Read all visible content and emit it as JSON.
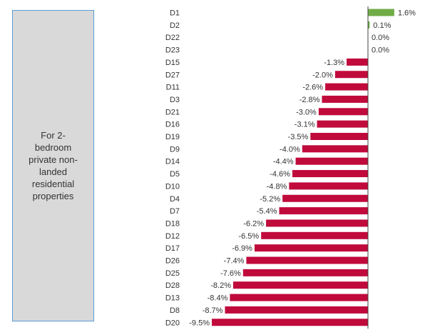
{
  "side_panel": {
    "text": "For 2-\nbedroom\nprivate non-\nlanded\nresidential\nproperties"
  },
  "colors": {
    "positive": "#70ad47",
    "negative": "#c00a3c",
    "panel_fill": "#d9d9d9",
    "panel_border": "#5b9bd5",
    "axis": "#444444",
    "text": "#333333"
  },
  "chart_data": {
    "type": "bar",
    "orientation": "horizontal",
    "title": "",
    "xlabel": "",
    "ylabel": "",
    "value_unit": "%",
    "categories": [
      "D1",
      "D2",
      "D22",
      "D23",
      "D15",
      "D27",
      "D11",
      "D3",
      "D21",
      "D16",
      "D19",
      "D9",
      "D14",
      "D5",
      "D10",
      "D4",
      "D7",
      "D18",
      "D12",
      "D17",
      "D26",
      "D25",
      "D28",
      "D13",
      "D8",
      "D20"
    ],
    "values": [
      1.6,
      0.1,
      0.0,
      0.0,
      -1.3,
      -2.0,
      -2.6,
      -2.8,
      -3.0,
      -3.1,
      -3.5,
      -4.0,
      -4.4,
      -4.6,
      -4.8,
      -5.2,
      -5.4,
      -6.2,
      -6.5,
      -6.9,
      -7.4,
      -7.6,
      -8.2,
      -8.4,
      -8.7,
      -9.5
    ],
    "labels": [
      "1.6%",
      "0.1%",
      "0.0%",
      "0.0%",
      "-1.3%",
      "-2.0%",
      "-2.6%",
      "-2.8%",
      "-3.0%",
      "-3.1%",
      "-3.5%",
      "-4.0%",
      "-4.4%",
      "-4.6%",
      "-4.8%",
      "-5.2%",
      "-5.4%",
      "-6.2%",
      "-6.5%",
      "-6.9%",
      "-7.4%",
      "-7.6%",
      "-8.2%",
      "-8.4%",
      "-8.7%",
      "-9.5%"
    ],
    "xlim": [
      -9.5,
      1.6
    ],
    "grid": false,
    "legend": "none"
  }
}
